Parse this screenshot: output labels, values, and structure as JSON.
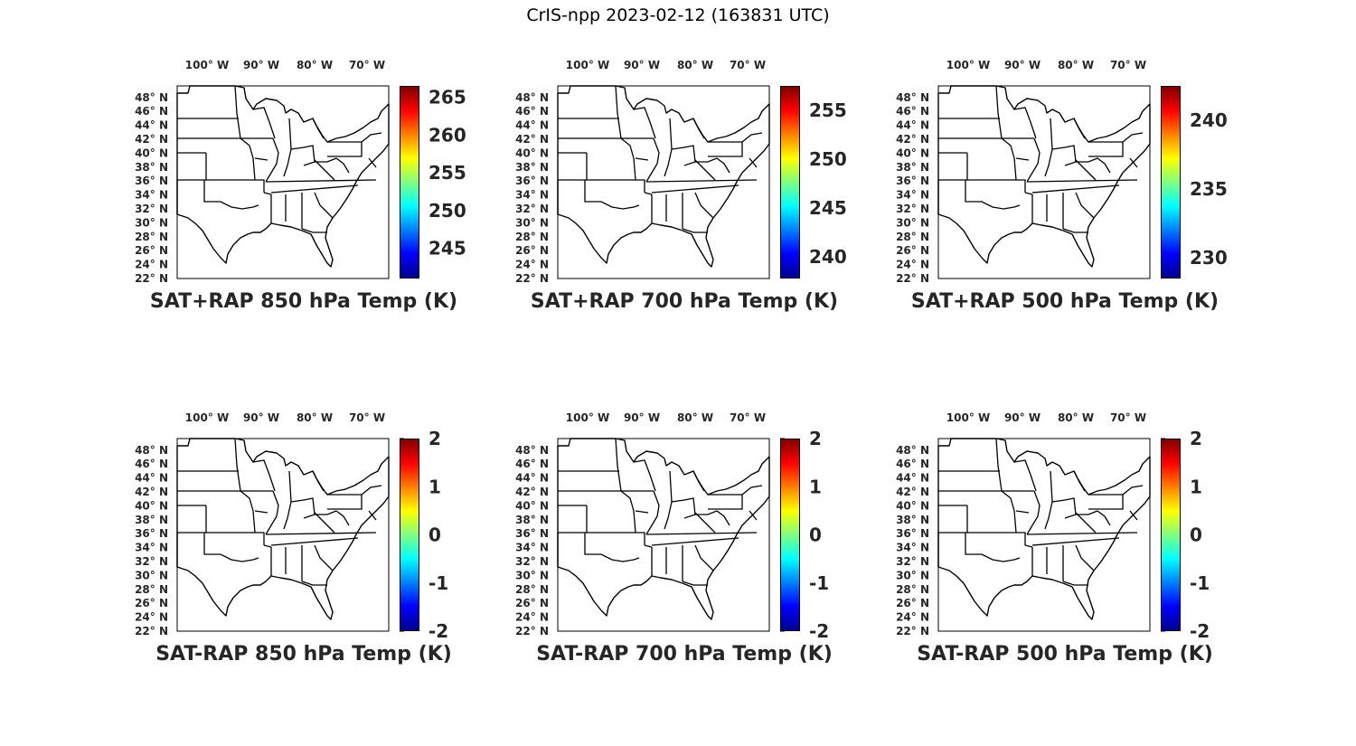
{
  "title": "CrIS-npp 2023-02-12 (163831 UTC)",
  "lon_ticks": [
    "100° W",
    "90° W",
    "80° W",
    "70° W"
  ],
  "lat_ticks": [
    "48° N",
    "46° N",
    "44° N",
    "42° N",
    "40° N",
    "38° N",
    "36° N",
    "34° N",
    "32° N",
    "30° N",
    "28° N",
    "26° N",
    "24° N",
    "22° N"
  ],
  "colormap": "jet",
  "panels": [
    {
      "title": "SAT+RAP 850 hPa Temp (K)",
      "colorbar": {
        "ticks": [
          "245",
          "250",
          "255",
          "260",
          "265"
        ],
        "range": [
          241,
          266.5
        ]
      }
    },
    {
      "title": "SAT+RAP 700 hPa Temp (K)",
      "colorbar": {
        "ticks": [
          "240",
          "245",
          "250",
          "255"
        ],
        "range": [
          237.8,
          257.5
        ]
      }
    },
    {
      "title": "SAT+RAP 500 hPa Temp (K)",
      "colorbar": {
        "ticks": [
          "230",
          "235",
          "240"
        ],
        "range": [
          228.5,
          242.5
        ]
      }
    },
    {
      "title": "SAT-RAP 850 hPa Temp (K)",
      "colorbar": {
        "ticks": [
          "-2",
          "-1",
          "0",
          "1",
          "2"
        ],
        "range": [
          -2,
          2
        ]
      }
    },
    {
      "title": "SAT-RAP 700 hPa Temp (K)",
      "colorbar": {
        "ticks": [
          "-2",
          "-1",
          "0",
          "1",
          "2"
        ],
        "range": [
          -2,
          2
        ]
      }
    },
    {
      "title": "SAT-RAP 500 hPa Temp (K)",
      "colorbar": {
        "ticks": [
          "-2",
          "-1",
          "0",
          "1",
          "2"
        ],
        "range": [
          -2,
          2
        ]
      }
    }
  ]
}
